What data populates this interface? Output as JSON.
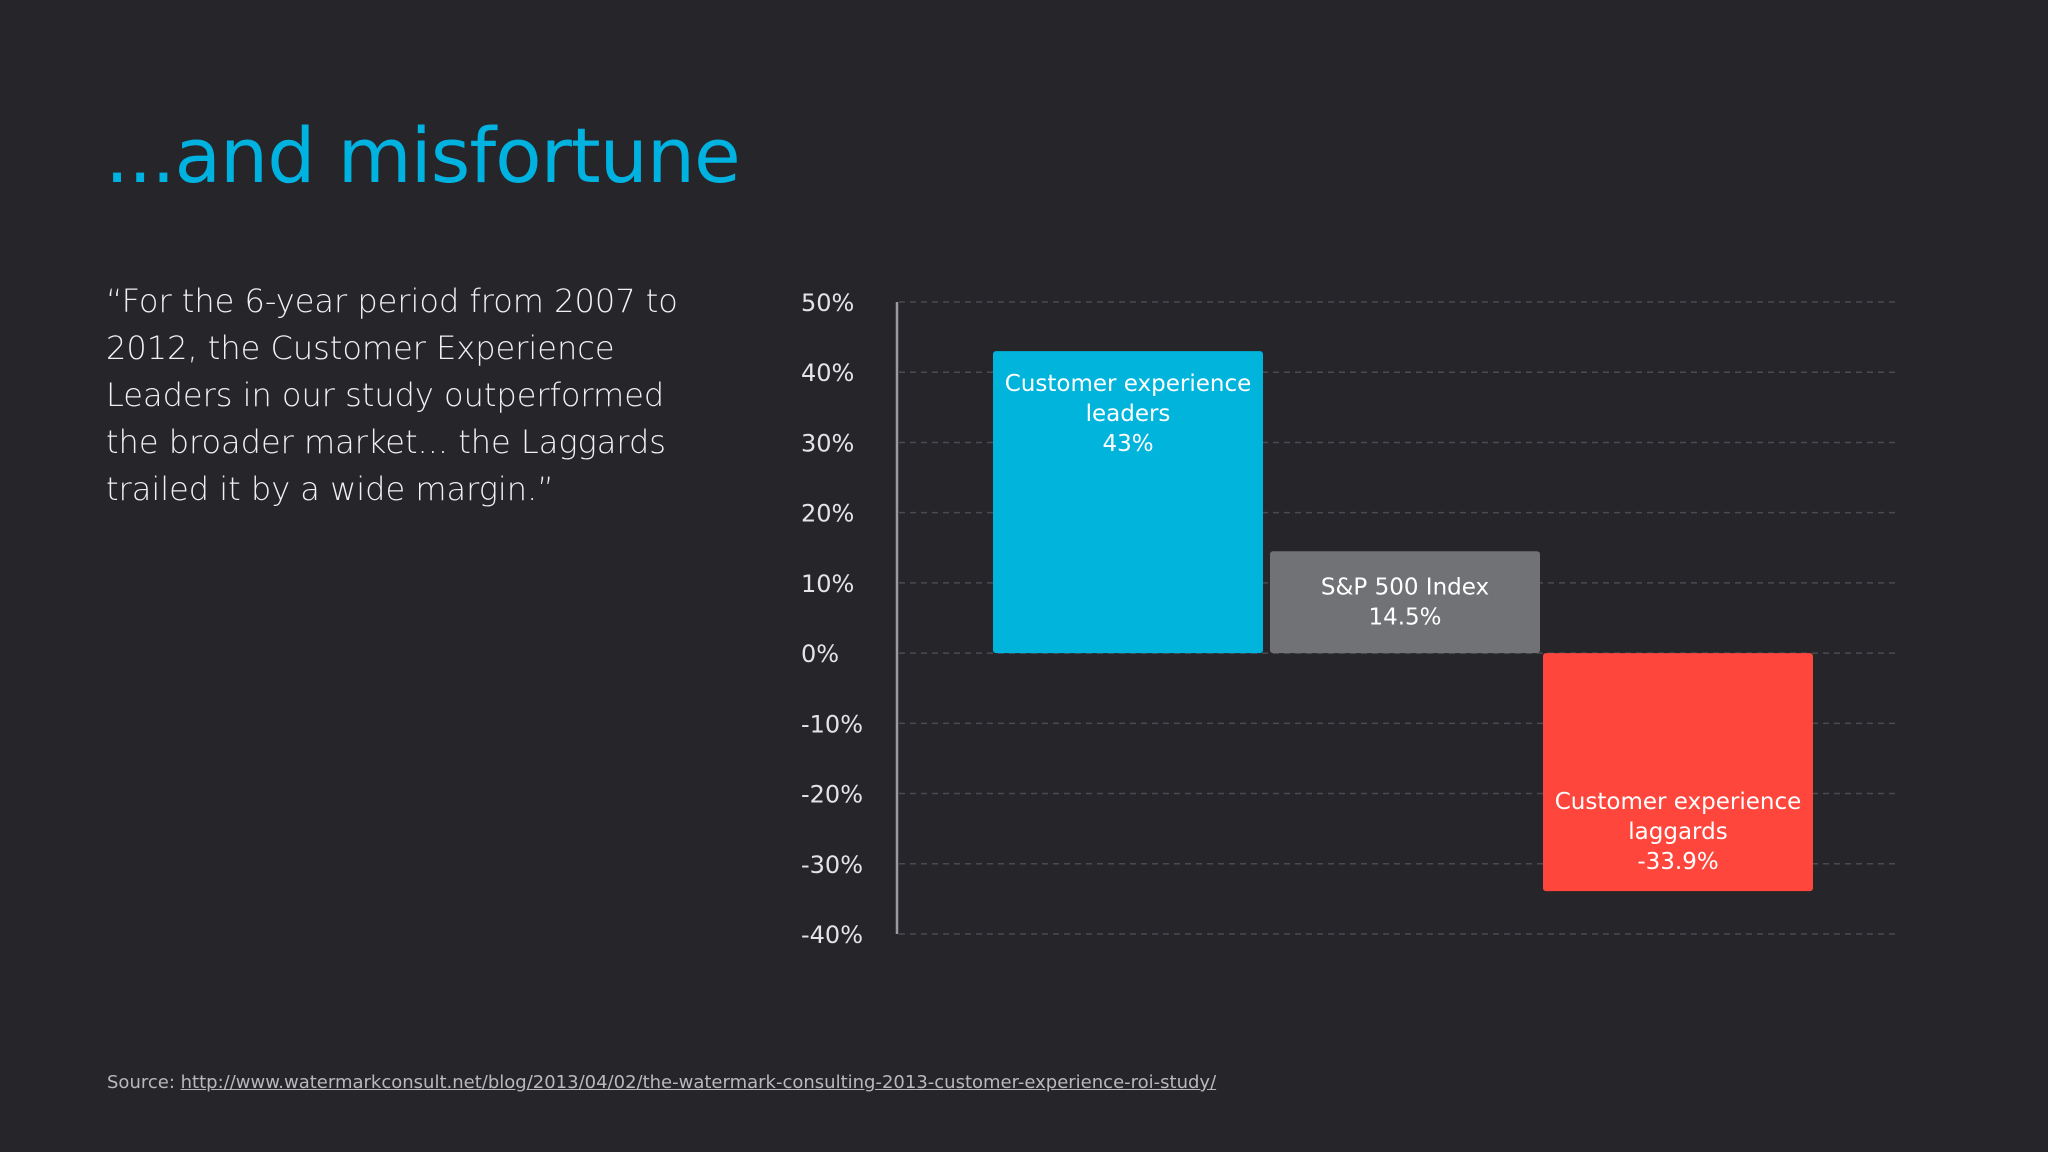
{
  "slide": {
    "title": "...and misfortune",
    "quote": "“For the 6-year period from 2007 to 2012, the Customer Experience Leaders in our study outperformed the broader market... the Laggards trailed it by a wide margin.”",
    "source_label": "Source:",
    "source_url": "http://www.watermarkconsult.net/blog/2013/04/02/the-watermark-consulting-2013-customer-experience-roi-study/"
  },
  "colors": {
    "background": "#25252a",
    "title": "#00b2e0",
    "leaders": "#00b4dc",
    "index": "#717276",
    "laggards": "#ff463c",
    "axis": "#9a9aa0",
    "grid": "#4a4a50",
    "tick_text": "#e4e4e6",
    "bar_text": "#ffffff"
  },
  "chart_data": {
    "type": "bar",
    "ylim": [
      -40,
      50
    ],
    "yticks": [
      "50%",
      "40%",
      "30%",
      "20%",
      "10%",
      "0%",
      "-10%",
      "-20%",
      "-30%",
      "-40%"
    ],
    "ytick_values": [
      50,
      40,
      30,
      20,
      10,
      0,
      -10,
      -20,
      -30,
      -40
    ],
    "grid": true,
    "legend": "none",
    "series": [
      {
        "label_lines": [
          "Customer experience",
          "leaders",
          "43%"
        ],
        "value": 43,
        "color_key": "leaders"
      },
      {
        "label_lines": [
          "S&P 500 Index",
          "14.5%"
        ],
        "value": 14.5,
        "color_key": "index"
      },
      {
        "label_lines": [
          "Customer experience",
          "laggards",
          "-33.9%"
        ],
        "value": -33.9,
        "color_key": "laggards"
      }
    ]
  }
}
